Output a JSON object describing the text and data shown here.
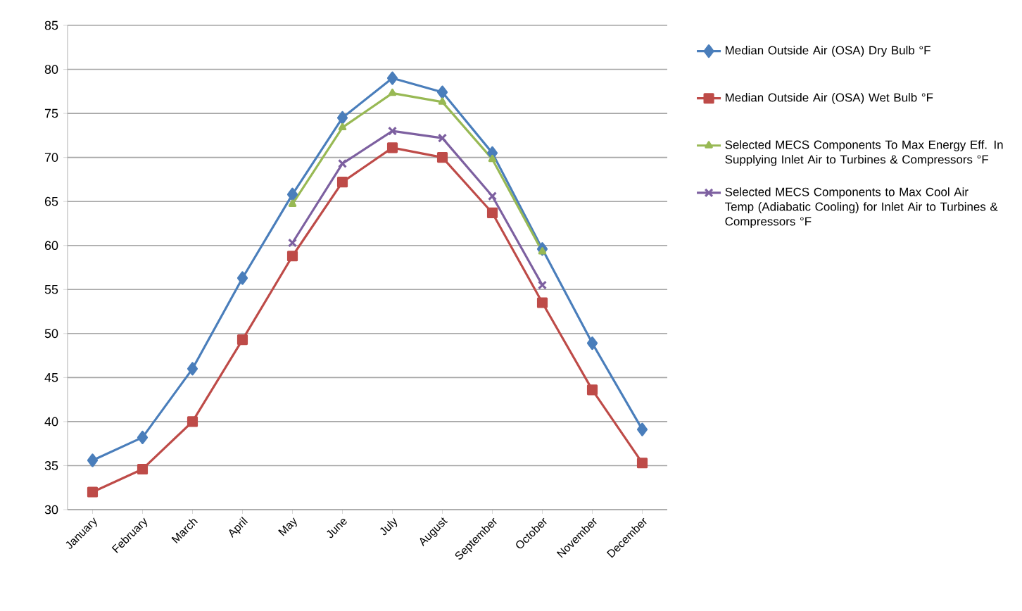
{
  "chart_data": {
    "type": "line",
    "categories": [
      "January",
      "February",
      "March",
      "April",
      "May",
      "June",
      "July",
      "August",
      "September",
      "October",
      "November",
      "December"
    ],
    "series": [
      {
        "name": "Median     Outside Air (OSA) Dry Bulb °F",
        "color": "#4a7ebb",
        "marker": "diamond",
        "values": [
          35.6,
          38.2,
          46.0,
          56.3,
          65.8,
          74.5,
          79.0,
          77.4,
          70.5,
          59.6,
          48.9,
          39.1
        ]
      },
      {
        "name": "Median     Outside Air (OSA) Wet Bulb °F",
        "color": "#be4b48",
        "marker": "square",
        "values": [
          32.0,
          34.6,
          40.0,
          49.3,
          58.8,
          67.2,
          71.1,
          70.0,
          63.7,
          53.5,
          43.6,
          35.3
        ]
      },
      {
        "name": "Selected MECS Components To Max Energy Eff. In Supplying Inlet Air to Turbines & Compressors °F",
        "color": "#98b954",
        "marker": "triangle",
        "values": [
          null,
          null,
          null,
          null,
          64.7,
          73.4,
          77.3,
          76.3,
          69.8,
          59.3,
          null,
          null
        ]
      },
      {
        "name": "Selected MECS Components to Max Cool Air Temp (Adiabatic Cooling) for Inlet Air to Turbines & Compressors °F",
        "color": "#7d60a0",
        "marker": "cross",
        "values": [
          null,
          null,
          null,
          null,
          60.3,
          69.3,
          73.0,
          72.2,
          65.6,
          55.5,
          null,
          null
        ]
      }
    ],
    "ylim": [
      30,
      85
    ],
    "yticks": [
      30,
      35,
      40,
      45,
      50,
      55,
      60,
      65,
      70,
      75,
      80,
      85
    ],
    "grid": "y",
    "legend": "right",
    "line_style": "solid"
  }
}
